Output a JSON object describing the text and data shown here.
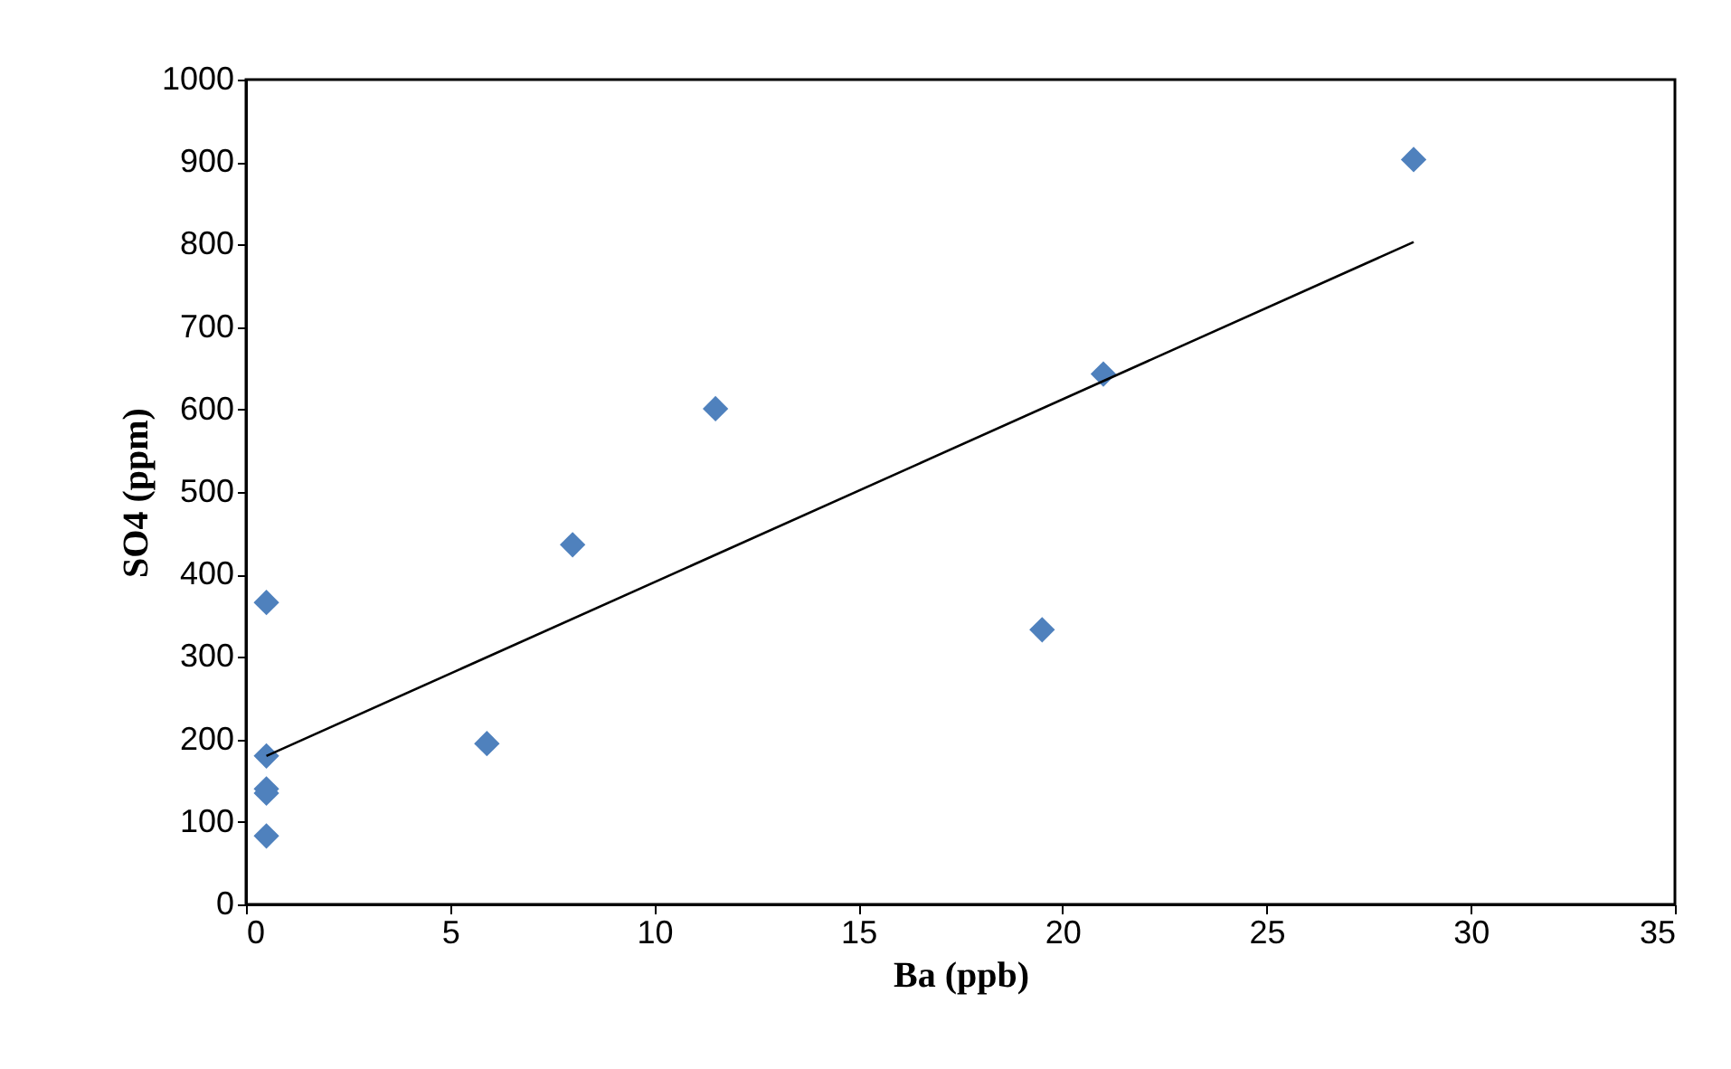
{
  "chart_data": {
    "type": "scatter",
    "xlabel": "Ba (ppb)",
    "ylabel": "SO4 (ppm)",
    "xlim": [
      0,
      35
    ],
    "xticks": [
      0,
      5,
      10,
      15,
      20,
      25,
      30,
      35
    ],
    "ylim": [
      0,
      1000
    ],
    "yticks": [
      0,
      100,
      200,
      300,
      400,
      500,
      600,
      700,
      800,
      900,
      1000
    ],
    "grid": false,
    "legend": false,
    "marker": "diamond",
    "series": [
      {
        "color": "#4f81bd",
        "x": [
          0.5,
          0.5,
          0.5,
          0.5,
          0.5,
          5.9,
          8,
          11.5,
          19.5,
          21,
          28.6
        ],
        "values": [
          366,
          180,
          140,
          135,
          83,
          195,
          436,
          601,
          333,
          643,
          903
        ]
      },
      {
        "type": "line",
        "marker": "none",
        "color": "#000000",
        "x": [
          0.5,
          28.6
        ],
        "values": [
          180,
          803
        ]
      }
    ]
  }
}
